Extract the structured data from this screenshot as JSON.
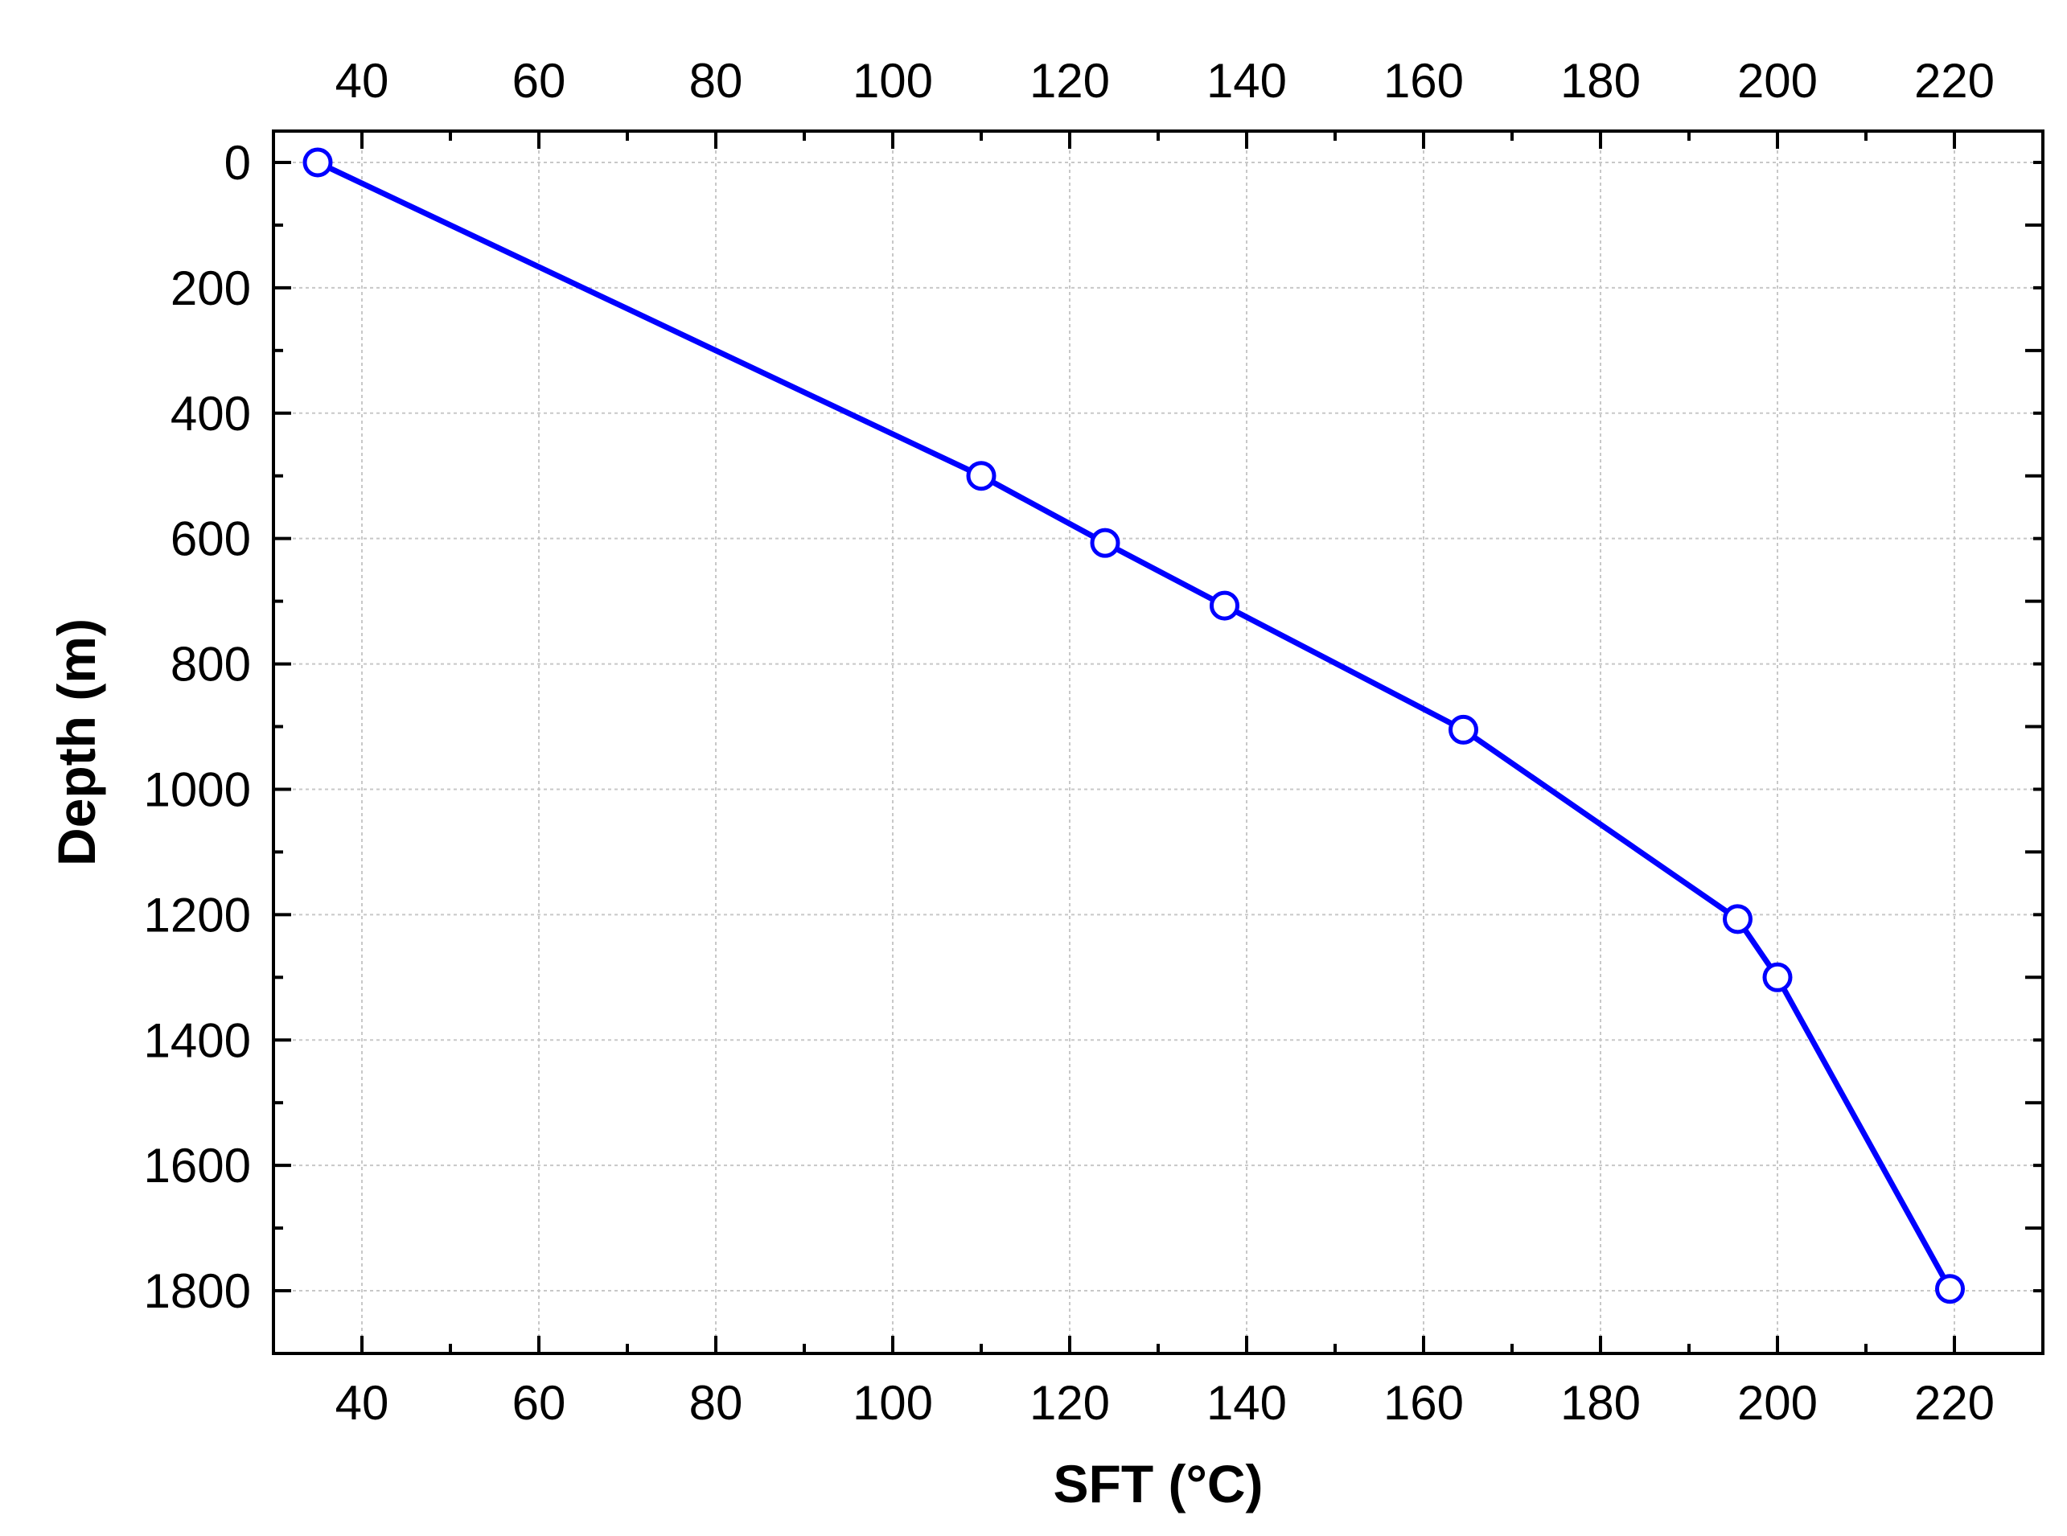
{
  "chart_data": {
    "type": "line",
    "xlabel": "SFT (°C)",
    "ylabel": "Depth (m)",
    "xlim": [
      30,
      230
    ],
    "ylim": [
      1900,
      -50
    ],
    "y_inverted": true,
    "x_ticks": [
      40,
      60,
      80,
      100,
      120,
      140,
      160,
      180,
      200,
      220
    ],
    "y_ticks": [
      0,
      200,
      400,
      600,
      800,
      1000,
      1200,
      1400,
      1600,
      1800
    ],
    "x_tick_labels": [
      "40",
      "60",
      "80",
      "100",
      "120",
      "140",
      "160",
      "180",
      "200",
      "220"
    ],
    "y_tick_labels": [
      "0",
      "200",
      "400",
      "600",
      "800",
      "1000",
      "1200",
      "1400",
      "1600",
      "1800"
    ],
    "top_axis_mirrors_bottom": true,
    "grid": true,
    "series": [
      {
        "color": "#0000ff",
        "marker": "open-circle",
        "points": [
          {
            "x": 35,
            "y": 0
          },
          {
            "x": 110,
            "y": 500
          },
          {
            "x": 124,
            "y": 607
          },
          {
            "x": 137.5,
            "y": 707
          },
          {
            "x": 164.5,
            "y": 905
          },
          {
            "x": 195.5,
            "y": 1207
          },
          {
            "x": 200,
            "y": 1300
          },
          {
            "x": 219.5,
            "y": 1797
          }
        ]
      }
    ]
  }
}
